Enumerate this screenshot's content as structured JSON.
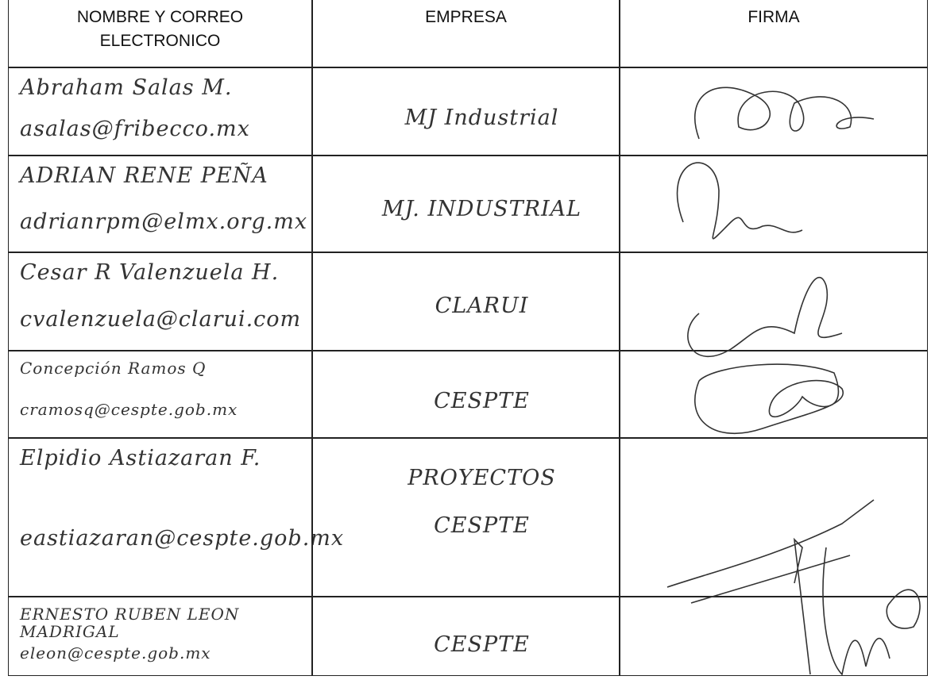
{
  "table": {
    "header": [
      "NOMBRE Y CORREO ELECTRONICO",
      "EMPRESA",
      "FIRMA"
    ],
    "rows": [
      {
        "name": "Abraham Salas M.",
        "email": "asalas@fribecco.mx",
        "company": "MJ Industrial"
      },
      {
        "name": "ADRIAN RENE PEÑA",
        "email": "adrianrpm@elmx.org.mx",
        "company": "MJ. INDUSTRIAL"
      },
      {
        "name": "Cesar R Valenzuela H.",
        "email": "cvalenzuela@clarui.com",
        "company": "CLARUI"
      },
      {
        "name": "Concepción Ramos Q",
        "email": "cramosq@cespte.gob.mx",
        "company": "CESPTE"
      },
      {
        "name": "Elpidio Astiazaran F.",
        "email": "eastiazaran@cespte.gob.mx",
        "company": "PROYECTOS CESPTE"
      },
      {
        "name": "ERNESTO RUBEN LEON MADRIGAL",
        "email": "eleon@cespte.gob.mx",
        "company": "CESPTE"
      }
    ]
  }
}
